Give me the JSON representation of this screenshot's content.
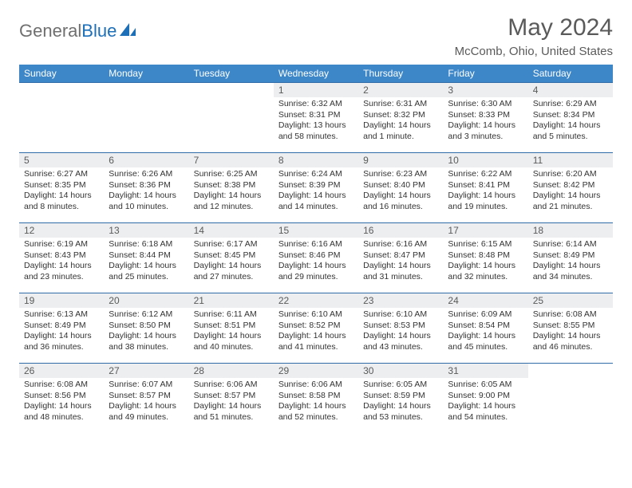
{
  "brand": {
    "general": "General",
    "blue": "Blue"
  },
  "title": "May 2024",
  "location": "McComb, Ohio, United States",
  "header_bg": "#3d87c9",
  "border_color": "#2f6ca8",
  "daynum_bg": "#eceef0",
  "text_color": "#5a5a5a",
  "weekdays": [
    "Sunday",
    "Monday",
    "Tuesday",
    "Wednesday",
    "Thursday",
    "Friday",
    "Saturday"
  ],
  "weeks": [
    [
      null,
      null,
      null,
      {
        "n": "1",
        "sr": "6:32 AM",
        "ss": "8:31 PM",
        "dl": "13 hours and 58 minutes."
      },
      {
        "n": "2",
        "sr": "6:31 AM",
        "ss": "8:32 PM",
        "dl": "14 hours and 1 minute."
      },
      {
        "n": "3",
        "sr": "6:30 AM",
        "ss": "8:33 PM",
        "dl": "14 hours and 3 minutes."
      },
      {
        "n": "4",
        "sr": "6:29 AM",
        "ss": "8:34 PM",
        "dl": "14 hours and 5 minutes."
      }
    ],
    [
      {
        "n": "5",
        "sr": "6:27 AM",
        "ss": "8:35 PM",
        "dl": "14 hours and 8 minutes."
      },
      {
        "n": "6",
        "sr": "6:26 AM",
        "ss": "8:36 PM",
        "dl": "14 hours and 10 minutes."
      },
      {
        "n": "7",
        "sr": "6:25 AM",
        "ss": "8:38 PM",
        "dl": "14 hours and 12 minutes."
      },
      {
        "n": "8",
        "sr": "6:24 AM",
        "ss": "8:39 PM",
        "dl": "14 hours and 14 minutes."
      },
      {
        "n": "9",
        "sr": "6:23 AM",
        "ss": "8:40 PM",
        "dl": "14 hours and 16 minutes."
      },
      {
        "n": "10",
        "sr": "6:22 AM",
        "ss": "8:41 PM",
        "dl": "14 hours and 19 minutes."
      },
      {
        "n": "11",
        "sr": "6:20 AM",
        "ss": "8:42 PM",
        "dl": "14 hours and 21 minutes."
      }
    ],
    [
      {
        "n": "12",
        "sr": "6:19 AM",
        "ss": "8:43 PM",
        "dl": "14 hours and 23 minutes."
      },
      {
        "n": "13",
        "sr": "6:18 AM",
        "ss": "8:44 PM",
        "dl": "14 hours and 25 minutes."
      },
      {
        "n": "14",
        "sr": "6:17 AM",
        "ss": "8:45 PM",
        "dl": "14 hours and 27 minutes."
      },
      {
        "n": "15",
        "sr": "6:16 AM",
        "ss": "8:46 PM",
        "dl": "14 hours and 29 minutes."
      },
      {
        "n": "16",
        "sr": "6:16 AM",
        "ss": "8:47 PM",
        "dl": "14 hours and 31 minutes."
      },
      {
        "n": "17",
        "sr": "6:15 AM",
        "ss": "8:48 PM",
        "dl": "14 hours and 32 minutes."
      },
      {
        "n": "18",
        "sr": "6:14 AM",
        "ss": "8:49 PM",
        "dl": "14 hours and 34 minutes."
      }
    ],
    [
      {
        "n": "19",
        "sr": "6:13 AM",
        "ss": "8:49 PM",
        "dl": "14 hours and 36 minutes."
      },
      {
        "n": "20",
        "sr": "6:12 AM",
        "ss": "8:50 PM",
        "dl": "14 hours and 38 minutes."
      },
      {
        "n": "21",
        "sr": "6:11 AM",
        "ss": "8:51 PM",
        "dl": "14 hours and 40 minutes."
      },
      {
        "n": "22",
        "sr": "6:10 AM",
        "ss": "8:52 PM",
        "dl": "14 hours and 41 minutes."
      },
      {
        "n": "23",
        "sr": "6:10 AM",
        "ss": "8:53 PM",
        "dl": "14 hours and 43 minutes."
      },
      {
        "n": "24",
        "sr": "6:09 AM",
        "ss": "8:54 PM",
        "dl": "14 hours and 45 minutes."
      },
      {
        "n": "25",
        "sr": "6:08 AM",
        "ss": "8:55 PM",
        "dl": "14 hours and 46 minutes."
      }
    ],
    [
      {
        "n": "26",
        "sr": "6:08 AM",
        "ss": "8:56 PM",
        "dl": "14 hours and 48 minutes."
      },
      {
        "n": "27",
        "sr": "6:07 AM",
        "ss": "8:57 PM",
        "dl": "14 hours and 49 minutes."
      },
      {
        "n": "28",
        "sr": "6:06 AM",
        "ss": "8:57 PM",
        "dl": "14 hours and 51 minutes."
      },
      {
        "n": "29",
        "sr": "6:06 AM",
        "ss": "8:58 PM",
        "dl": "14 hours and 52 minutes."
      },
      {
        "n": "30",
        "sr": "6:05 AM",
        "ss": "8:59 PM",
        "dl": "14 hours and 53 minutes."
      },
      {
        "n": "31",
        "sr": "6:05 AM",
        "ss": "9:00 PM",
        "dl": "14 hours and 54 minutes."
      },
      null
    ]
  ],
  "labels": {
    "sunrise": "Sunrise: ",
    "sunset": "Sunset: ",
    "daylight": "Daylight: "
  }
}
